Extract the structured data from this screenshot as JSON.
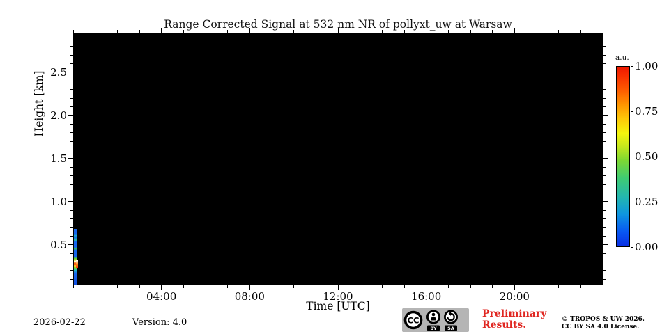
{
  "title": "Range Corrected Signal at 532 nm NR of pollyxt_uw at Warsaw",
  "chart_data": {
    "type": "heatmap",
    "title": "Range Corrected Signal at 532 nm NR of pollyxt_uw at Warsaw",
    "xlabel": "Time [UTC]",
    "ylabel": "Height [km]",
    "xlim_hours": [
      0,
      24
    ],
    "x_minor_step_hours": 1,
    "x_major_ticks": [
      {
        "hour": 4,
        "label": "04:00"
      },
      {
        "hour": 8,
        "label": "08:00"
      },
      {
        "hour": 12,
        "label": "12:00"
      },
      {
        "hour": 16,
        "label": "16:00"
      },
      {
        "hour": 20,
        "label": "20:00"
      }
    ],
    "ylim_km": [
      0.03,
      2.96
    ],
    "y_minor_step_km": 0.1,
    "y_major_ticks": [
      {
        "km": 0.5,
        "label": "0.5"
      },
      {
        "km": 1.0,
        "label": "1.0"
      },
      {
        "km": 1.5,
        "label": "1.5"
      },
      {
        "km": 2.0,
        "label": "2.0"
      },
      {
        "km": 2.5,
        "label": "2.5"
      }
    ],
    "background_color": "#000000",
    "grid": false,
    "no_data_note": "Signal present only in a narrow column near 00:00 UTC below ~0.65 km; remainder of the day is black (zero / no signal)",
    "colorbar": {
      "label": "a.u.",
      "range": [
        0.0,
        1.0
      ],
      "ticks": [
        {
          "v": 0.0,
          "label": "0.00"
        },
        {
          "v": 0.25,
          "label": "0.25"
        },
        {
          "v": 0.5,
          "label": "0.50"
        },
        {
          "v": 0.75,
          "label": "0.75"
        },
        {
          "v": 1.0,
          "label": "1.00"
        }
      ],
      "stops": [
        {
          "v": 0.0,
          "color": "#0a2fe4"
        },
        {
          "v": 0.08,
          "color": "#0857f2"
        },
        {
          "v": 0.18,
          "color": "#0e96e0"
        },
        {
          "v": 0.27,
          "color": "#22b5b2"
        },
        {
          "v": 0.38,
          "color": "#3fcb73"
        },
        {
          "v": 0.48,
          "color": "#7ed832"
        },
        {
          "v": 0.56,
          "color": "#c8e81c"
        },
        {
          "v": 0.63,
          "color": "#f4f50d"
        },
        {
          "v": 0.71,
          "color": "#fdc908"
        },
        {
          "v": 0.79,
          "color": "#fe9400"
        },
        {
          "v": 0.88,
          "color": "#fd5500"
        },
        {
          "v": 0.96,
          "color": "#f62a00"
        },
        {
          "v": 1.0,
          "color": "#ec1800"
        }
      ]
    },
    "signal_profile": {
      "time_span_hours": [
        0.0,
        0.13
      ],
      "height_span_km": [
        0.03,
        0.65
      ],
      "peak": {
        "height_km": 0.2,
        "value_au": 1.0
      },
      "stops": [
        {
          "p": 0.0,
          "color": "#1565ec"
        },
        {
          "p": 0.1,
          "color": "#1565ec"
        },
        {
          "p": 0.12,
          "color": "#1ab2d4"
        },
        {
          "p": 0.15,
          "color": "#1565ec"
        },
        {
          "p": 0.2,
          "color": "#23bfae"
        },
        {
          "p": 0.23,
          "color": "#1565ec"
        },
        {
          "p": 0.33,
          "color": "#1565ec"
        },
        {
          "p": 0.35,
          "color": "#37c94c"
        },
        {
          "p": 0.38,
          "color": "#1565ec"
        },
        {
          "p": 0.5,
          "color": "#1565ec"
        },
        {
          "p": 0.53,
          "color": "#55cf38"
        },
        {
          "p": 0.56,
          "color": "#d8e919"
        },
        {
          "p": 0.585,
          "color": "#ffffff"
        },
        {
          "p": 0.61,
          "color": "#ff7b1e"
        },
        {
          "p": 0.635,
          "color": "#f3290f"
        },
        {
          "p": 0.66,
          "color": "#ffd31a"
        },
        {
          "p": 0.7,
          "color": "#74d42f"
        },
        {
          "p": 0.74,
          "color": "#1fb6c8"
        },
        {
          "p": 0.8,
          "color": "#1565ec"
        },
        {
          "p": 1.0,
          "color": "#0f4de0"
        }
      ],
      "blob_stops": [
        {
          "p": 0.0,
          "color": "#ffffff"
        },
        {
          "p": 0.5,
          "color": "#ff8c1e"
        },
        {
          "p": 1.0,
          "color": "#f23010"
        }
      ]
    }
  },
  "colorbar_unit": "a.u.",
  "footer": {
    "date": "2026-02-22",
    "version": "Version: 4.0",
    "preliminary_line1": "Preliminary",
    "preliminary_line2": "Results.",
    "preliminary_color": "#e02620",
    "copyright_line1": "© TROPOS & UW 2026.",
    "copyright_line2": "CC BY SA 4.0 License.",
    "license_badge": {
      "cc": "CC",
      "by": "BY",
      "sa": "SA"
    }
  }
}
